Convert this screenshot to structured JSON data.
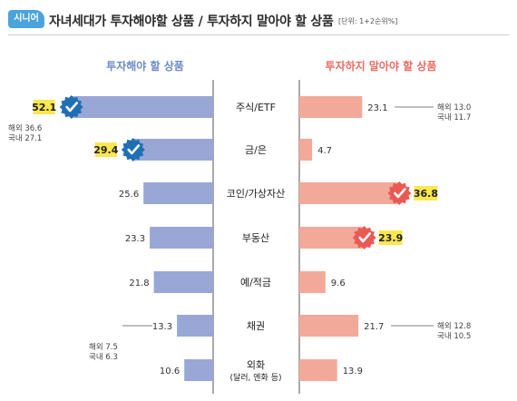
{
  "header": {
    "badge": "시니어",
    "title": "자녀세대가 투자해야할 상품 / 투자하지 말아야 할 상품",
    "unit": "[단위: 1+2순위%]"
  },
  "colors": {
    "left_bar": "#98a7d6",
    "right_bar": "#f3a99a",
    "left_heading": "#6b8bc7",
    "right_heading": "#ec6b62",
    "highlight": "#fbe74f",
    "left_check": "#1f6fb5",
    "right_check": "#ea5a55"
  },
  "chart_data": {
    "type": "bar",
    "layout": "butterfly",
    "categories": [
      "주식/ETF",
      "금/은",
      "코인/가상자산",
      "부동산",
      "예/적금",
      "채권",
      "외화\n(달러, 엔화 등)"
    ],
    "series": [
      {
        "name": "투자해야 할 상품",
        "values": [
          52.1,
          29.4,
          25.6,
          23.3,
          21.8,
          13.3,
          10.6
        ],
        "highlighted": [
          0,
          1
        ]
      },
      {
        "name": "투자하지 말아야 할 상품",
        "values": [
          23.1,
          4.7,
          36.8,
          23.9,
          9.6,
          21.7,
          13.9
        ],
        "highlighted": [
          2,
          3
        ]
      }
    ],
    "annotations": [
      {
        "series": 0,
        "category": 0,
        "lines": [
          "해외 36.6",
          "국내 27.1"
        ]
      },
      {
        "series": 0,
        "category": 5,
        "lines": [
          "해외 7.5",
          "국내 6.3"
        ]
      },
      {
        "series": 1,
        "category": 0,
        "lines": [
          "해외 13.0",
          "국내 11.7"
        ]
      },
      {
        "series": 1,
        "category": 5,
        "lines": [
          "해외 12.8",
          "국내 10.5"
        ]
      }
    ]
  }
}
